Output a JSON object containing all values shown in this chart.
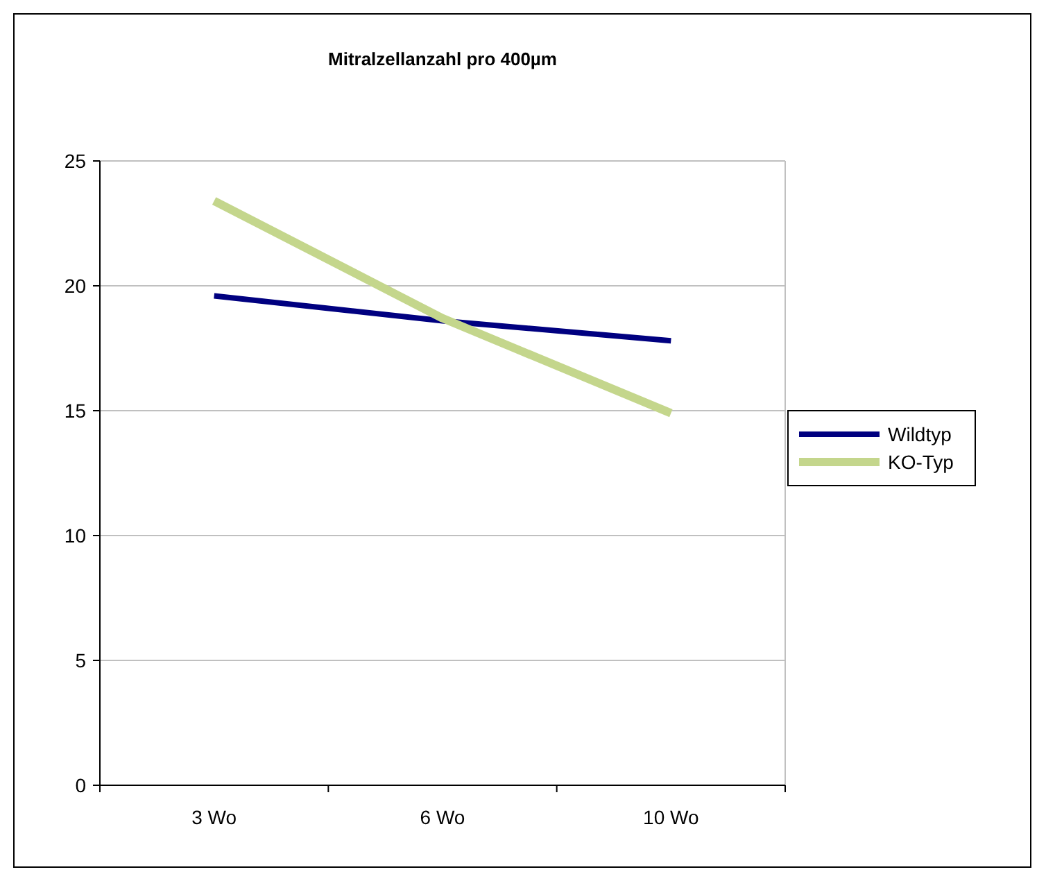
{
  "chart_data": {
    "type": "line",
    "title": "Mitralzellanzahl pro 400µm",
    "categories": [
      "3 Wo",
      "6 Wo",
      "10 Wo"
    ],
    "series": [
      {
        "name": "Wildtyp",
        "color": "#000080",
        "values": [
          19.6,
          18.6,
          17.8
        ]
      },
      {
        "name": "KO-Typ",
        "color": "#c4d68c",
        "values": [
          23.4,
          18.7,
          14.9
        ]
      }
    ],
    "ylim": [
      0,
      25
    ],
    "yticks": [
      0,
      5,
      10,
      15,
      20,
      25
    ],
    "grid": "y",
    "legend": "right",
    "marker": "none"
  }
}
